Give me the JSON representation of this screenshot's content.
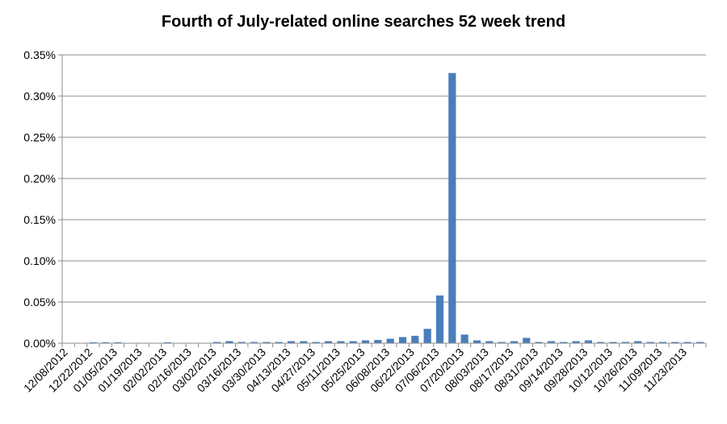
{
  "chart_data": {
    "type": "bar",
    "title": "Fourth of July-related online searches 52 week trend",
    "xlabel": "",
    "ylabel": "",
    "ylim": [
      0,
      0.35
    ],
    "y_unit": "%",
    "y_ticks": [
      "0.00%",
      "0.05%",
      "0.10%",
      "0.15%",
      "0.20%",
      "0.25%",
      "0.30%",
      "0.35%"
    ],
    "grid": true,
    "legend": "none",
    "bar_color": "#4a7ebb",
    "categories": [
      "12/08/2012",
      "12/15/2012",
      "12/22/2012",
      "12/29/2012",
      "01/05/2013",
      "01/12/2013",
      "01/19/2013",
      "01/26/2013",
      "02/02/2013",
      "02/09/2013",
      "02/16/2013",
      "02/23/2013",
      "03/02/2013",
      "03/09/2013",
      "03/16/2013",
      "03/23/2013",
      "03/30/2013",
      "04/06/2013",
      "04/13/2013",
      "04/20/2013",
      "04/27/2013",
      "05/04/2013",
      "05/11/2013",
      "05/18/2013",
      "05/25/2013",
      "06/01/2013",
      "06/08/2013",
      "06/15/2013",
      "06/22/2013",
      "06/29/2013",
      "07/06/2013",
      "07/13/2013",
      "07/20/2013",
      "07/27/2013",
      "08/03/2013",
      "08/10/2013",
      "08/17/2013",
      "08/24/2013",
      "08/31/2013",
      "09/07/2013",
      "09/14/2013",
      "09/21/2013",
      "09/28/2013",
      "10/05/2013",
      "10/12/2013",
      "10/19/2013",
      "10/26/2013",
      "11/02/2013",
      "11/09/2013",
      "11/16/2013",
      "11/23/2013",
      "11/30/2013"
    ],
    "tick_labels": [
      "12/08/2012",
      "12/22/2012",
      "01/05/2013",
      "01/19/2013",
      "02/02/2013",
      "02/16/2013",
      "03/02/2013",
      "03/16/2013",
      "03/30/2013",
      "04/13/2013",
      "04/27/2013",
      "05/11/2013",
      "05/25/2013",
      "06/08/2013",
      "06/22/2013",
      "07/06/2013",
      "07/20/2013",
      "08/03/2013",
      "08/17/2013",
      "08/31/2013",
      "09/14/2013",
      "09/28/2013",
      "10/12/2013",
      "10/26/2013",
      "11/09/2013",
      "11/23/2013"
    ],
    "values": [
      0,
      0,
      0.0012,
      0.0012,
      0.0012,
      0,
      0,
      0,
      0.0012,
      0,
      0,
      0,
      0.0015,
      0.0025,
      0.0015,
      0.0015,
      0.0015,
      0.0015,
      0.0025,
      0.0025,
      0.0015,
      0.0025,
      0.0025,
      0.0025,
      0.0035,
      0.004,
      0.0055,
      0.0075,
      0.009,
      0.0175,
      0.058,
      0.328,
      0.0105,
      0.0035,
      0.0025,
      0.0015,
      0.0025,
      0.0065,
      0.0015,
      0.0025,
      0.0015,
      0.0025,
      0.0035,
      0.0015,
      0.0015,
      0.0015,
      0.0025,
      0.0015,
      0.0015,
      0.0015,
      0.0015,
      0.0015
    ]
  }
}
